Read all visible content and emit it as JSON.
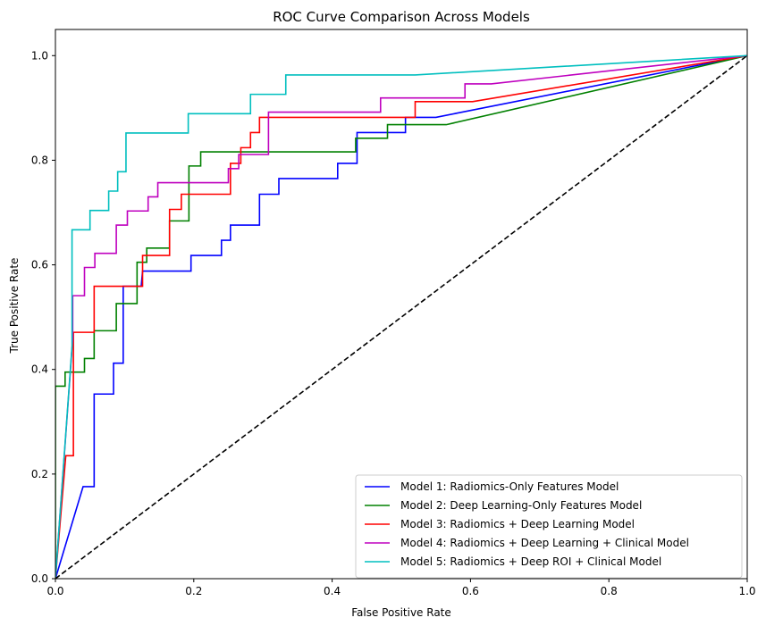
{
  "chart_data": {
    "type": "line",
    "title": "ROC Curve Comparison Across Models",
    "xlabel": "False Positive Rate",
    "ylabel": "True Positive Rate",
    "xlim": [
      0.0,
      1.0
    ],
    "ylim": [
      0.0,
      1.05
    ],
    "xticks": [
      "0.0",
      "0.2",
      "0.4",
      "0.6",
      "0.8",
      "1.0"
    ],
    "yticks": [
      "0.0",
      "0.2",
      "0.4",
      "0.6",
      "0.8",
      "1.0"
    ],
    "grid": false,
    "legend_position": "bottom-right",
    "series": [
      {
        "name": "Model 1: Radiomics-Only Features Model",
        "color": "#0000ff",
        "points": [
          [
            0,
            0
          ],
          [
            0.04,
            0.176
          ],
          [
            0.056,
            0.176
          ],
          [
            0.056,
            0.353
          ],
          [
            0.084,
            0.353
          ],
          [
            0.084,
            0.412
          ],
          [
            0.098,
            0.412
          ],
          [
            0.098,
            0.559
          ],
          [
            0.124,
            0.559
          ],
          [
            0.126,
            0.588
          ],
          [
            0.196,
            0.588
          ],
          [
            0.196,
            0.618
          ],
          [
            0.24,
            0.618
          ],
          [
            0.24,
            0.647
          ],
          [
            0.253,
            0.647
          ],
          [
            0.253,
            0.676
          ],
          [
            0.295,
            0.676
          ],
          [
            0.295,
            0.735
          ],
          [
            0.323,
            0.735
          ],
          [
            0.323,
            0.765
          ],
          [
            0.408,
            0.765
          ],
          [
            0.408,
            0.794
          ],
          [
            0.436,
            0.794
          ],
          [
            0.436,
            0.853
          ],
          [
            0.506,
            0.853
          ],
          [
            0.506,
            0.882
          ],
          [
            0.55,
            0.882
          ],
          [
            1.0,
            1.0
          ]
        ]
      },
      {
        "name": "Model 2: Deep Learning-Only Features Model",
        "color": "#008000",
        "points": [
          [
            0,
            0
          ],
          [
            0,
            0.368
          ],
          [
            0.014,
            0.368
          ],
          [
            0.014,
            0.395
          ],
          [
            0.042,
            0.395
          ],
          [
            0.042,
            0.421
          ],
          [
            0.056,
            0.421
          ],
          [
            0.056,
            0.474
          ],
          [
            0.088,
            0.474
          ],
          [
            0.088,
            0.526
          ],
          [
            0.118,
            0.526
          ],
          [
            0.118,
            0.605
          ],
          [
            0.132,
            0.605
          ],
          [
            0.132,
            0.632
          ],
          [
            0.165,
            0.632
          ],
          [
            0.165,
            0.684
          ],
          [
            0.193,
            0.684
          ],
          [
            0.193,
            0.789
          ],
          [
            0.21,
            0.789
          ],
          [
            0.21,
            0.816
          ],
          [
            0.434,
            0.816
          ],
          [
            0.434,
            0.842
          ],
          [
            0.48,
            0.842
          ],
          [
            0.48,
            0.868
          ],
          [
            0.565,
            0.868
          ],
          [
            1.0,
            1.0
          ]
        ]
      },
      {
        "name": "Model 3: Radiomics + Deep Learning Model",
        "color": "#ff0000",
        "points": [
          [
            0,
            0
          ],
          [
            0.015,
            0.235
          ],
          [
            0.026,
            0.235
          ],
          [
            0.026,
            0.471
          ],
          [
            0.056,
            0.471
          ],
          [
            0.056,
            0.559
          ],
          [
            0.126,
            0.559
          ],
          [
            0.126,
            0.618
          ],
          [
            0.165,
            0.618
          ],
          [
            0.165,
            0.706
          ],
          [
            0.182,
            0.706
          ],
          [
            0.182,
            0.735
          ],
          [
            0.253,
            0.735
          ],
          [
            0.253,
            0.794
          ],
          [
            0.268,
            0.794
          ],
          [
            0.268,
            0.824
          ],
          [
            0.282,
            0.824
          ],
          [
            0.282,
            0.853
          ],
          [
            0.295,
            0.853
          ],
          [
            0.295,
            0.882
          ],
          [
            0.52,
            0.882
          ],
          [
            0.52,
            0.912
          ],
          [
            0.603,
            0.912
          ],
          [
            1.0,
            1.0
          ]
        ]
      },
      {
        "name": "Model 4: Radiomics + Deep Learning + Clinical Model",
        "color": "#bf00bf",
        "points": [
          [
            0,
            0
          ],
          [
            0.025,
            0.459
          ],
          [
            0.025,
            0.541
          ],
          [
            0.042,
            0.541
          ],
          [
            0.042,
            0.595
          ],
          [
            0.057,
            0.595
          ],
          [
            0.057,
            0.622
          ],
          [
            0.088,
            0.622
          ],
          [
            0.088,
            0.676
          ],
          [
            0.104,
            0.676
          ],
          [
            0.104,
            0.703
          ],
          [
            0.134,
            0.703
          ],
          [
            0.134,
            0.73
          ],
          [
            0.148,
            0.73
          ],
          [
            0.148,
            0.757
          ],
          [
            0.25,
            0.757
          ],
          [
            0.25,
            0.784
          ],
          [
            0.265,
            0.784
          ],
          [
            0.265,
            0.811
          ],
          [
            0.308,
            0.811
          ],
          [
            0.308,
            0.892
          ],
          [
            0.47,
            0.892
          ],
          [
            0.47,
            0.919
          ],
          [
            0.592,
            0.919
          ],
          [
            0.592,
            0.946
          ],
          [
            0.63,
            0.946
          ],
          [
            1.0,
            1.0
          ]
        ]
      },
      {
        "name": "Model 5: Radiomics + Deep ROI + Clinical Model",
        "color": "#00bfbf",
        "points": [
          [
            0,
            0
          ],
          [
            0.024,
            0.444
          ],
          [
            0.024,
            0.667
          ],
          [
            0.05,
            0.667
          ],
          [
            0.05,
            0.704
          ],
          [
            0.077,
            0.704
          ],
          [
            0.077,
            0.741
          ],
          [
            0.09,
            0.741
          ],
          [
            0.09,
            0.778
          ],
          [
            0.102,
            0.778
          ],
          [
            0.102,
            0.852
          ],
          [
            0.192,
            0.852
          ],
          [
            0.192,
            0.889
          ],
          [
            0.282,
            0.889
          ],
          [
            0.282,
            0.926
          ],
          [
            0.333,
            0.926
          ],
          [
            0.333,
            0.963
          ],
          [
            0.52,
            0.963
          ],
          [
            1.0,
            1.0
          ]
        ]
      }
    ],
    "reference_line": {
      "color": "#000000",
      "style": "dashed",
      "points": [
        [
          0,
          0
        ],
        [
          1,
          1
        ]
      ]
    }
  }
}
